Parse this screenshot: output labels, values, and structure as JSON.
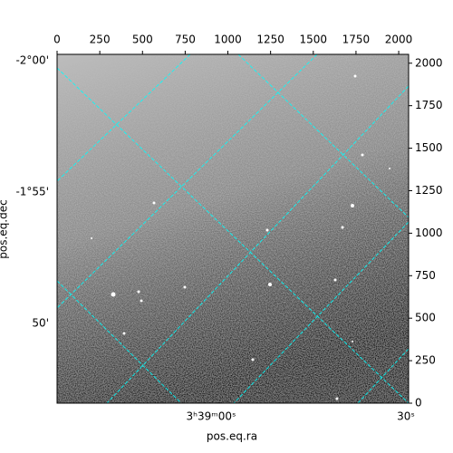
{
  "chart_data": {
    "type": "image",
    "xlabel": "pos.eq.ra",
    "ylabel": "pos.eq.dec",
    "xlim": [
      0,
      2058
    ],
    "xticks": [
      0,
      250,
      500,
      750,
      1000,
      1250,
      1500,
      1750,
      2000
    ],
    "ylim": [
      0,
      2052
    ],
    "yticks": [
      0,
      250,
      500,
      750,
      1000,
      1250,
      1500,
      1750,
      2000
    ],
    "ra_tick_labels": [
      "3ʰ39ᵐ00ˢ",
      "30ˢ"
    ],
    "dec_tick_labels": [
      "-2°00'",
      "-1°55'",
      "50'"
    ],
    "grid": true,
    "grid_color": "#00ffff"
  }
}
